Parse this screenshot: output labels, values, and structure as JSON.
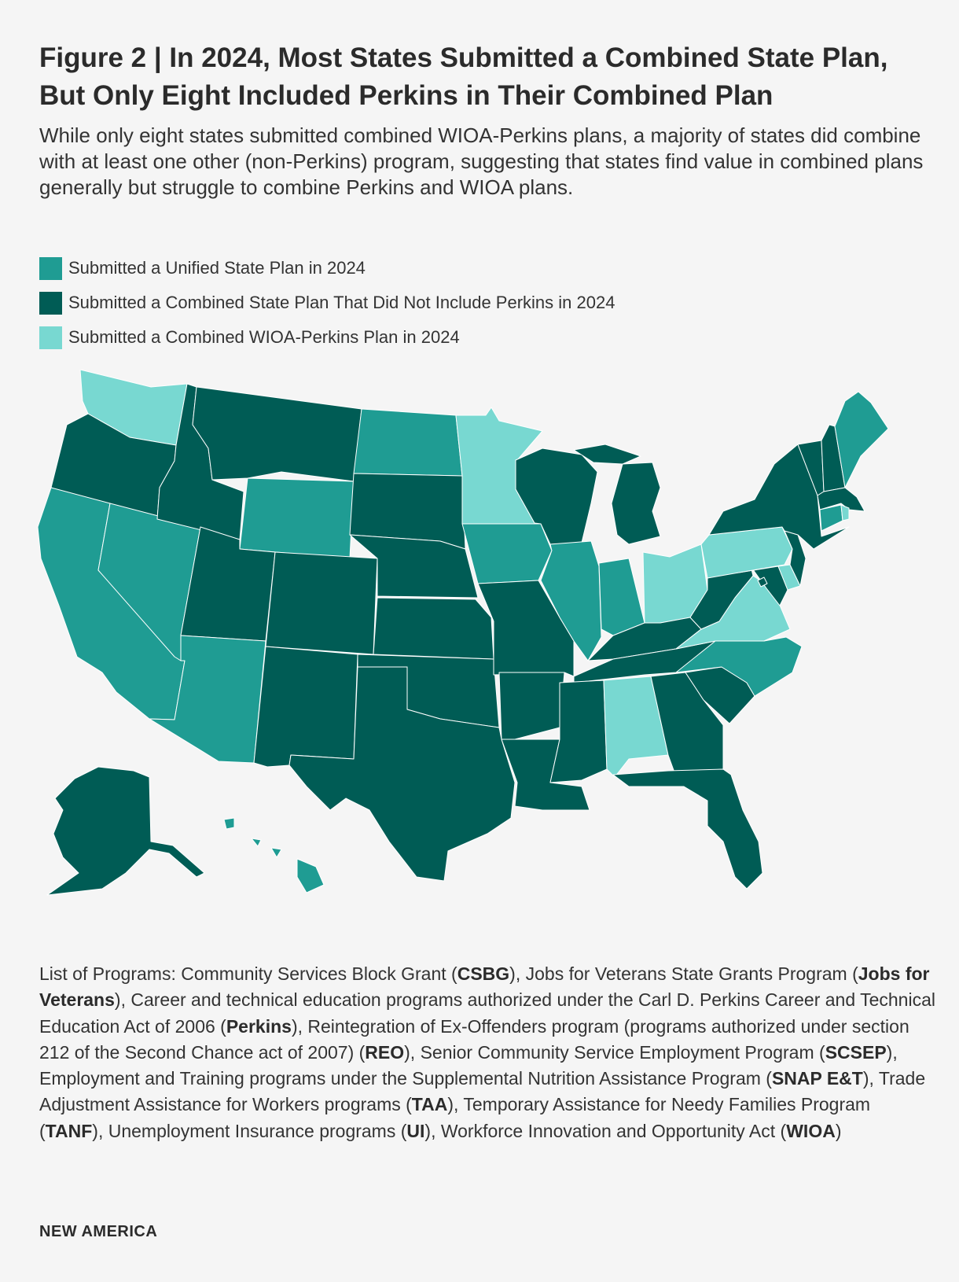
{
  "title": "Figure 2 | In 2024, Most States Submitted a Combined State Plan, But Only Eight Included Perkins in Their Combined Plan",
  "subtitle": "While only eight states submitted combined WIOA-Perkins plans, a majority of states did combine with at least one other (non-Perkins) program, suggesting that states find value in combined plans generally but struggle to combine Perkins and WIOA plans.",
  "colors": {
    "unified": "#1f9c93",
    "combined_no_perkins": "#005c55",
    "combined_perkins": "#78d8d1",
    "background": "#f5f5f5",
    "border": "#ffffff"
  },
  "legend": [
    {
      "key": "unified",
      "label": "Submitted a Unified State Plan in 2024",
      "color": "#1f9c93"
    },
    {
      "key": "combined_no_perkins",
      "label": "Submitted a Combined State Plan That Did Not Include Perkins in 2024",
      "color": "#005c55"
    },
    {
      "key": "combined_perkins",
      "label": "Submitted a Combined WIOA-Perkins Plan in 2024",
      "color": "#78d8d1"
    }
  ],
  "map_data": {
    "states": {
      "WA": "combined_perkins",
      "OR": "combined_no_perkins",
      "CA": "unified",
      "NV": "unified",
      "ID": "combined_no_perkins",
      "MT": "combined_no_perkins",
      "WY": "unified",
      "UT": "combined_no_perkins",
      "AZ": "unified",
      "CO": "combined_no_perkins",
      "NM": "combined_no_perkins",
      "ND": "unified",
      "SD": "combined_no_perkins",
      "NE": "combined_no_perkins",
      "KS": "combined_no_perkins",
      "OK": "combined_no_perkins",
      "TX": "combined_no_perkins",
      "MN": "combined_perkins",
      "IA": "unified",
      "MO": "combined_no_perkins",
      "AR": "combined_no_perkins",
      "LA": "combined_no_perkins",
      "WI": "combined_no_perkins",
      "IL": "unified",
      "MI": "combined_no_perkins",
      "IN": "unified",
      "OH": "combined_perkins",
      "KY": "combined_no_perkins",
      "TN": "combined_no_perkins",
      "MS": "combined_no_perkins",
      "AL": "combined_perkins",
      "GA": "combined_no_perkins",
      "FL": "combined_no_perkins",
      "SC": "combined_no_perkins",
      "NC": "unified",
      "VA": "combined_perkins",
      "WV": "combined_no_perkins",
      "PA": "combined_perkins",
      "NY": "combined_no_perkins",
      "VT": "combined_no_perkins",
      "NH": "combined_no_perkins",
      "ME": "unified",
      "MA": "combined_no_perkins",
      "RI": "combined_perkins",
      "CT": "unified",
      "NJ": "combined_no_perkins",
      "DE": "combined_perkins",
      "MD": "combined_no_perkins",
      "DC": "combined_no_perkins",
      "AK": "combined_no_perkins",
      "HI": "unified"
    }
  },
  "programs": [
    {
      "t": "List of Programs: Community Services Block Grant ("
    },
    {
      "t": "CSBG",
      "b": true
    },
    {
      "t": "), Jobs for Veterans State Grants Program ("
    },
    {
      "t": "Jobs for Veterans",
      "b": true
    },
    {
      "t": "), Career and technical education programs authorized under the Carl D. Perkins Career and Technical Education Act of 2006 ("
    },
    {
      "t": "Perkins",
      "b": true
    },
    {
      "t": "), Reintegration of Ex-Offenders program (programs authorized under section 212 of the Second Chance act of 2007) ("
    },
    {
      "t": "REO",
      "b": true
    },
    {
      "t": "), Senior Community Service Employment Program ("
    },
    {
      "t": "SCSEP",
      "b": true
    },
    {
      "t": "), Employment and Training programs under the Supplemental Nutrition Assistance Program ("
    },
    {
      "t": "SNAP E&T",
      "b": true
    },
    {
      "t": "), Trade Adjustment Assistance for Workers programs ("
    },
    {
      "t": "TAA",
      "b": true
    },
    {
      "t": "), Temporary Assistance for Needy Families Program ("
    },
    {
      "t": "TANF",
      "b": true
    },
    {
      "t": "), Unemployment Insurance programs ("
    },
    {
      "t": "UI",
      "b": true
    },
    {
      "t": "), Workforce Innovation and Opportunity Act ("
    },
    {
      "t": "WIOA",
      "b": true
    },
    {
      "t": ")"
    }
  ],
  "credit": "NEW AMERICA"
}
